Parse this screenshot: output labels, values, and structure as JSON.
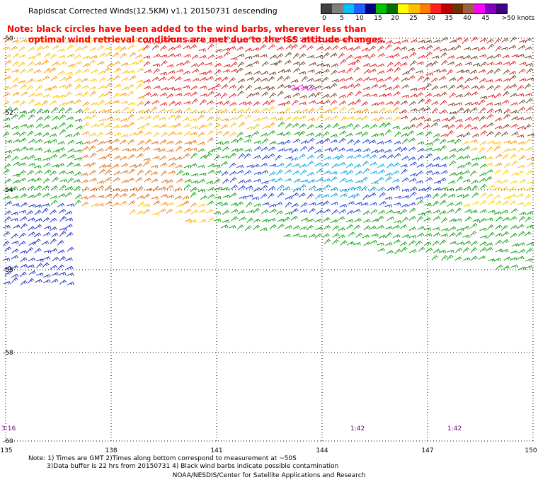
{
  "title": "Rapidscat Corrected Winds(12.5KM) v1.1 20150731 descending",
  "notes": [
    "Note: black circles have been added to the wind barbs, wherever less than",
    "optimal wind retrieval conditions are met due to the ISS attitude changes."
  ],
  "legend": {
    "labels": [
      "0",
      "5",
      "10",
      "15",
      "20",
      "25",
      "30",
      "35",
      "40",
      "45",
      ">50 knots"
    ],
    "colors": [
      "#404040",
      "#7f7f7f",
      "#00bfff",
      "#2060ff",
      "#000080",
      "#00c000",
      "#007000",
      "#ffff00",
      "#ffc000",
      "#ff8000",
      "#ff2020",
      "#c00000",
      "#703000",
      "#a06040",
      "#ff00ff",
      "#8000c0",
      "#400080"
    ]
  },
  "map": {
    "lat_labels": [
      "-50",
      "-52",
      "-54",
      "-56",
      "-58",
      "-60"
    ],
    "lon_labels": [
      "135",
      "138",
      "141",
      "144",
      "147",
      "150"
    ],
    "time_labels": [
      "3:16",
      "1:42",
      "1:42"
    ]
  },
  "footer": {
    "line1": "Note: 1) Times are GMT 2)Times along bottom correspond to measurement at ~50S",
    "line2": "3)Data buffer is 22 hrs from 20150731 4) Black wind barbs indicate possible contamination",
    "credit": "NOAA/NESDIS/Center for Satellite Applications and Research"
  },
  "colors": {
    "grid": "#000000",
    "note": "#ff0000",
    "time": "#6a007f"
  }
}
